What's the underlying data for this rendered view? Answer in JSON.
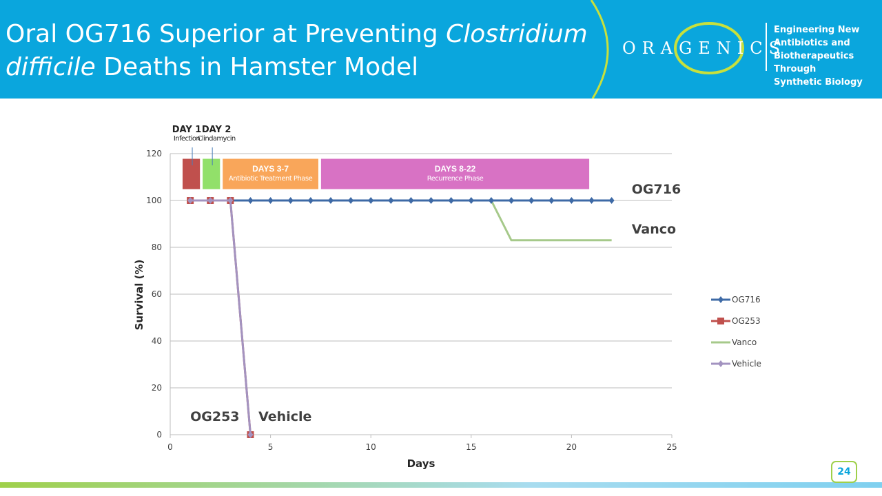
{
  "header": {
    "title_part1": "Oral OG716 Superior at Preventing ",
    "title_italic1": "Clostridium",
    "title_italic2": "difficile",
    "title_part2": " Deaths in Hamster Model",
    "logo": "ORAGENICS",
    "tagline": [
      "Engineering New",
      "Antibiotics and",
      "Biotherapeutics Through",
      "Synthetic Biology"
    ]
  },
  "page_number": "24",
  "colors": {
    "header": "#0aa6dd",
    "accent": "#c8e03c"
  },
  "chart_data": {
    "type": "line",
    "xlabel": "Days",
    "ylabel": "Survival (%)",
    "xlim": [
      0,
      25
    ],
    "ylim": [
      0,
      120
    ],
    "xticks": [
      0,
      5,
      10,
      15,
      20,
      25
    ],
    "yticks": [
      0,
      20,
      40,
      60,
      80,
      100,
      120
    ],
    "grid": "horizontal",
    "legend": "right",
    "series": [
      {
        "name": "OG716",
        "color": "#3e6aa6",
        "marker": "diamond",
        "x": [
          1,
          2,
          3,
          4,
          5,
          6,
          7,
          8,
          9,
          10,
          11,
          12,
          13,
          14,
          15,
          16,
          17,
          18,
          19,
          20,
          21,
          22
        ],
        "y": [
          100,
          100,
          100,
          100,
          100,
          100,
          100,
          100,
          100,
          100,
          100,
          100,
          100,
          100,
          100,
          100,
          100,
          100,
          100,
          100,
          100,
          100
        ]
      },
      {
        "name": "OG253",
        "color": "#c0504d",
        "marker": "square",
        "x": [
          1,
          2,
          3,
          4
        ],
        "y": [
          100,
          100,
          100,
          0
        ]
      },
      {
        "name": "Vanco",
        "color": "#a6c98a",
        "marker": "none",
        "x": [
          3,
          4,
          5,
          6,
          7,
          8,
          9,
          10,
          11,
          12,
          13,
          14,
          15,
          16,
          17,
          18,
          19,
          20,
          21,
          22
        ],
        "y": [
          100,
          100,
          100,
          100,
          100,
          100,
          100,
          100,
          100,
          100,
          100,
          100,
          100,
          100,
          83,
          83,
          83,
          83,
          83,
          83
        ]
      },
      {
        "name": "Vehicle",
        "color": "#a393c0",
        "marker": "diamond",
        "x": [
          1,
          2,
          3,
          4
        ],
        "y": [
          100,
          100,
          100,
          0
        ]
      }
    ],
    "phases": [
      {
        "title": "",
        "sub": "",
        "color": "#c0504d",
        "x0": 0.6,
        "x1": 1.5
      },
      {
        "title": "",
        "sub": "",
        "color": "#92e06a",
        "x0": 1.6,
        "x1": 2.5
      },
      {
        "title": "DAYS 3-7",
        "sub": "Antibiotic Treatment Phase",
        "color": "#f9a65a",
        "x0": 2.6,
        "x1": 7.4
      },
      {
        "title": "DAYS 8-22",
        "sub": "Recurrence Phase",
        "color": "#d872c4",
        "x0": 7.5,
        "x1": 20.9
      }
    ],
    "callouts": [
      {
        "title": "DAY 1",
        "sub": "Infection",
        "day": 1.1
      },
      {
        "title": "DAY 2",
        "sub": "Clindamycin",
        "day": 2.1
      }
    ],
    "annotations": [
      {
        "text": "OG716",
        "x": 23,
        "y": 105
      },
      {
        "text": "Vanco",
        "x": 23,
        "y": 88
      },
      {
        "text": "OG253",
        "x": 1,
        "y": 8
      },
      {
        "text": "Vehicle",
        "x": 4.4,
        "y": 8
      }
    ]
  }
}
